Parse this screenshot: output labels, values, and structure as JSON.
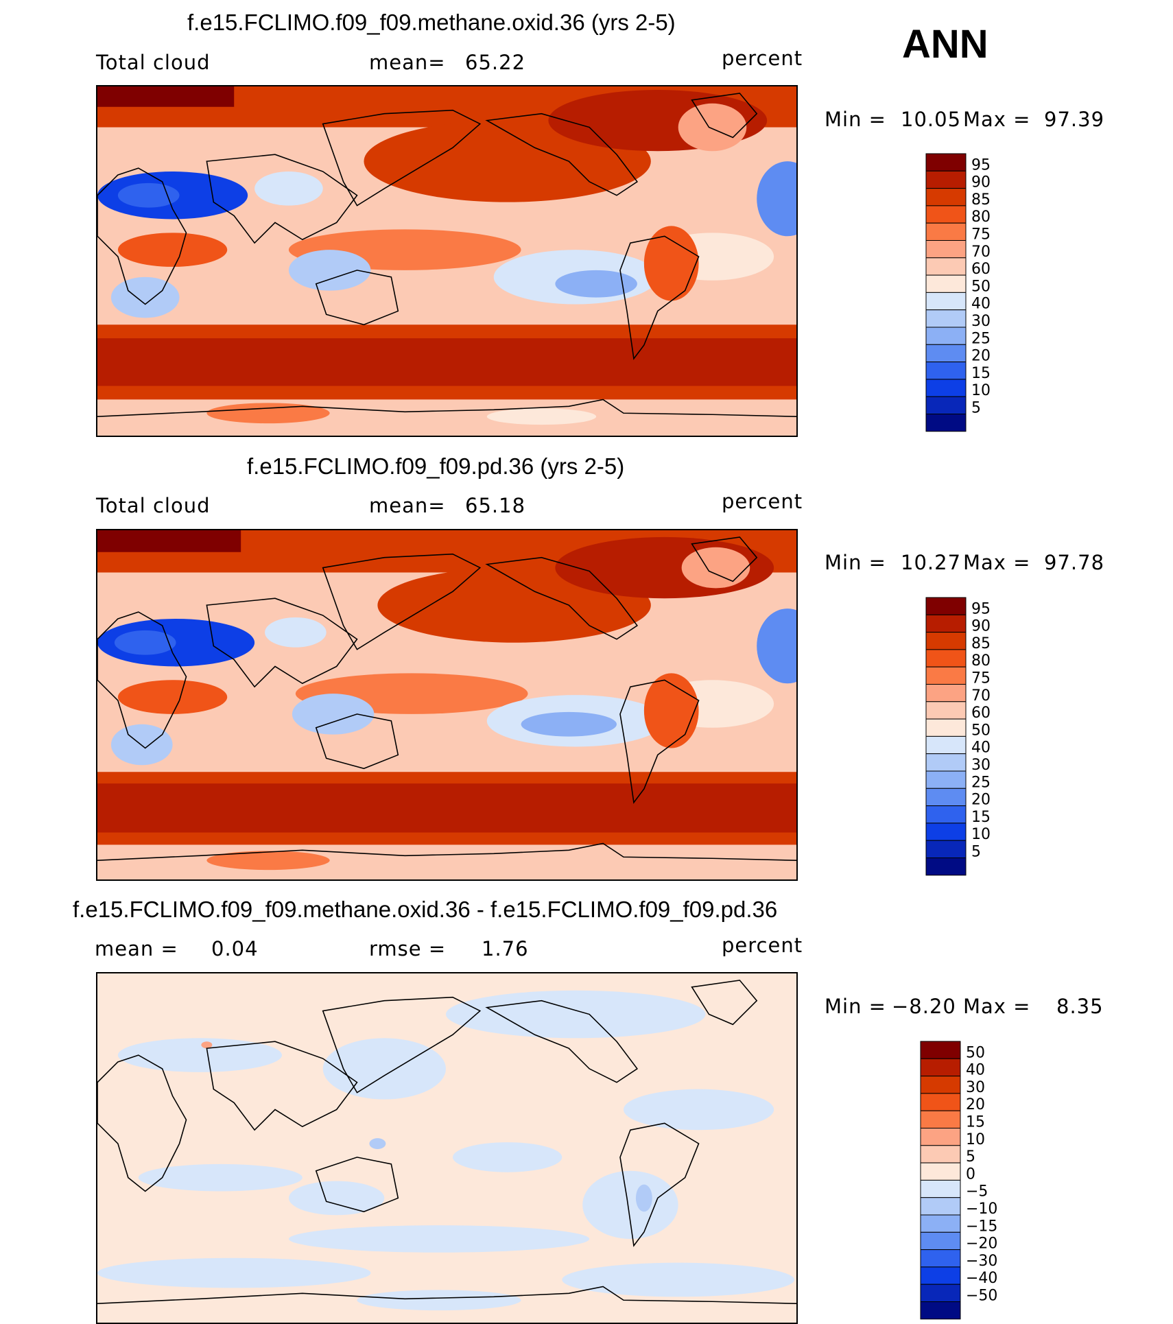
{
  "season": "ANN",
  "chart_data": [
    {
      "type": "heatmap",
      "title": "f.e15.FCLIMO.f09_f09.methane.oxid.36 (yrs 2-5)",
      "variable": "Total cloud",
      "units": "percent",
      "stat_label": "mean=",
      "stat_value": "65.22",
      "min_label": "Min =",
      "min": "10.05",
      "max_label": "Max =",
      "max": "97.39",
      "levels": [
        "95",
        "90",
        "85",
        "80",
        "75",
        "70",
        "60",
        "50",
        "40",
        "30",
        "25",
        "20",
        "15",
        "10",
        "5"
      ],
      "colors": [
        "#7f0000",
        "#b71d00",
        "#d63a00",
        "#f05418",
        "#fa7a45",
        "#fca383",
        "#fccab4",
        "#fde8da",
        "#d7e6fa",
        "#b1cbf7",
        "#8cb0f5",
        "#5e8cf2",
        "#2f62ee",
        "#0d3fe6",
        "#0827b9",
        "#000b84"
      ]
    },
    {
      "type": "heatmap",
      "title": "f.e15.FCLIMO.f09_f09.pd.36 (yrs 2-5)",
      "variable": "Total cloud",
      "units": "percent",
      "stat_label": "mean=",
      "stat_value": "65.18",
      "min_label": "Min =",
      "min": "10.27",
      "max_label": "Max =",
      "max": "97.78",
      "levels": [
        "95",
        "90",
        "85",
        "80",
        "75",
        "70",
        "60",
        "50",
        "40",
        "30",
        "25",
        "20",
        "15",
        "10",
        "5"
      ],
      "colors": [
        "#7f0000",
        "#b71d00",
        "#d63a00",
        "#f05418",
        "#fa7a45",
        "#fca383",
        "#fccab4",
        "#fde8da",
        "#d7e6fa",
        "#b1cbf7",
        "#8cb0f5",
        "#5e8cf2",
        "#2f62ee",
        "#0d3fe6",
        "#0827b9",
        "#000b84"
      ]
    },
    {
      "type": "heatmap",
      "title": "f.e15.FCLIMO.f09_f09.methane.oxid.36 - f.e15.FCLIMO.f09_f09.pd.36",
      "units": "percent",
      "stat_label": "mean =",
      "stat_value": "0.04",
      "rmse_label": "rmse =",
      "rmse_value": "1.76",
      "min_label": "Min =",
      "min": "−8.20",
      "max_label": "Max =",
      "max": "8.35",
      "levels": [
        "50",
        "40",
        "30",
        "20",
        "15",
        "10",
        "5",
        "0",
        "−5",
        "−10",
        "−15",
        "−20",
        "−30",
        "−40",
        "−50"
      ],
      "colors": [
        "#7f0000",
        "#b71d00",
        "#d63a00",
        "#f05418",
        "#fa7a45",
        "#fca383",
        "#fccab4",
        "#fde8da",
        "#d7e6fa",
        "#b1cbf7",
        "#8cb0f5",
        "#5e8cf2",
        "#2f62ee",
        "#0d3fe6",
        "#0827b9",
        "#000b84"
      ]
    }
  ]
}
